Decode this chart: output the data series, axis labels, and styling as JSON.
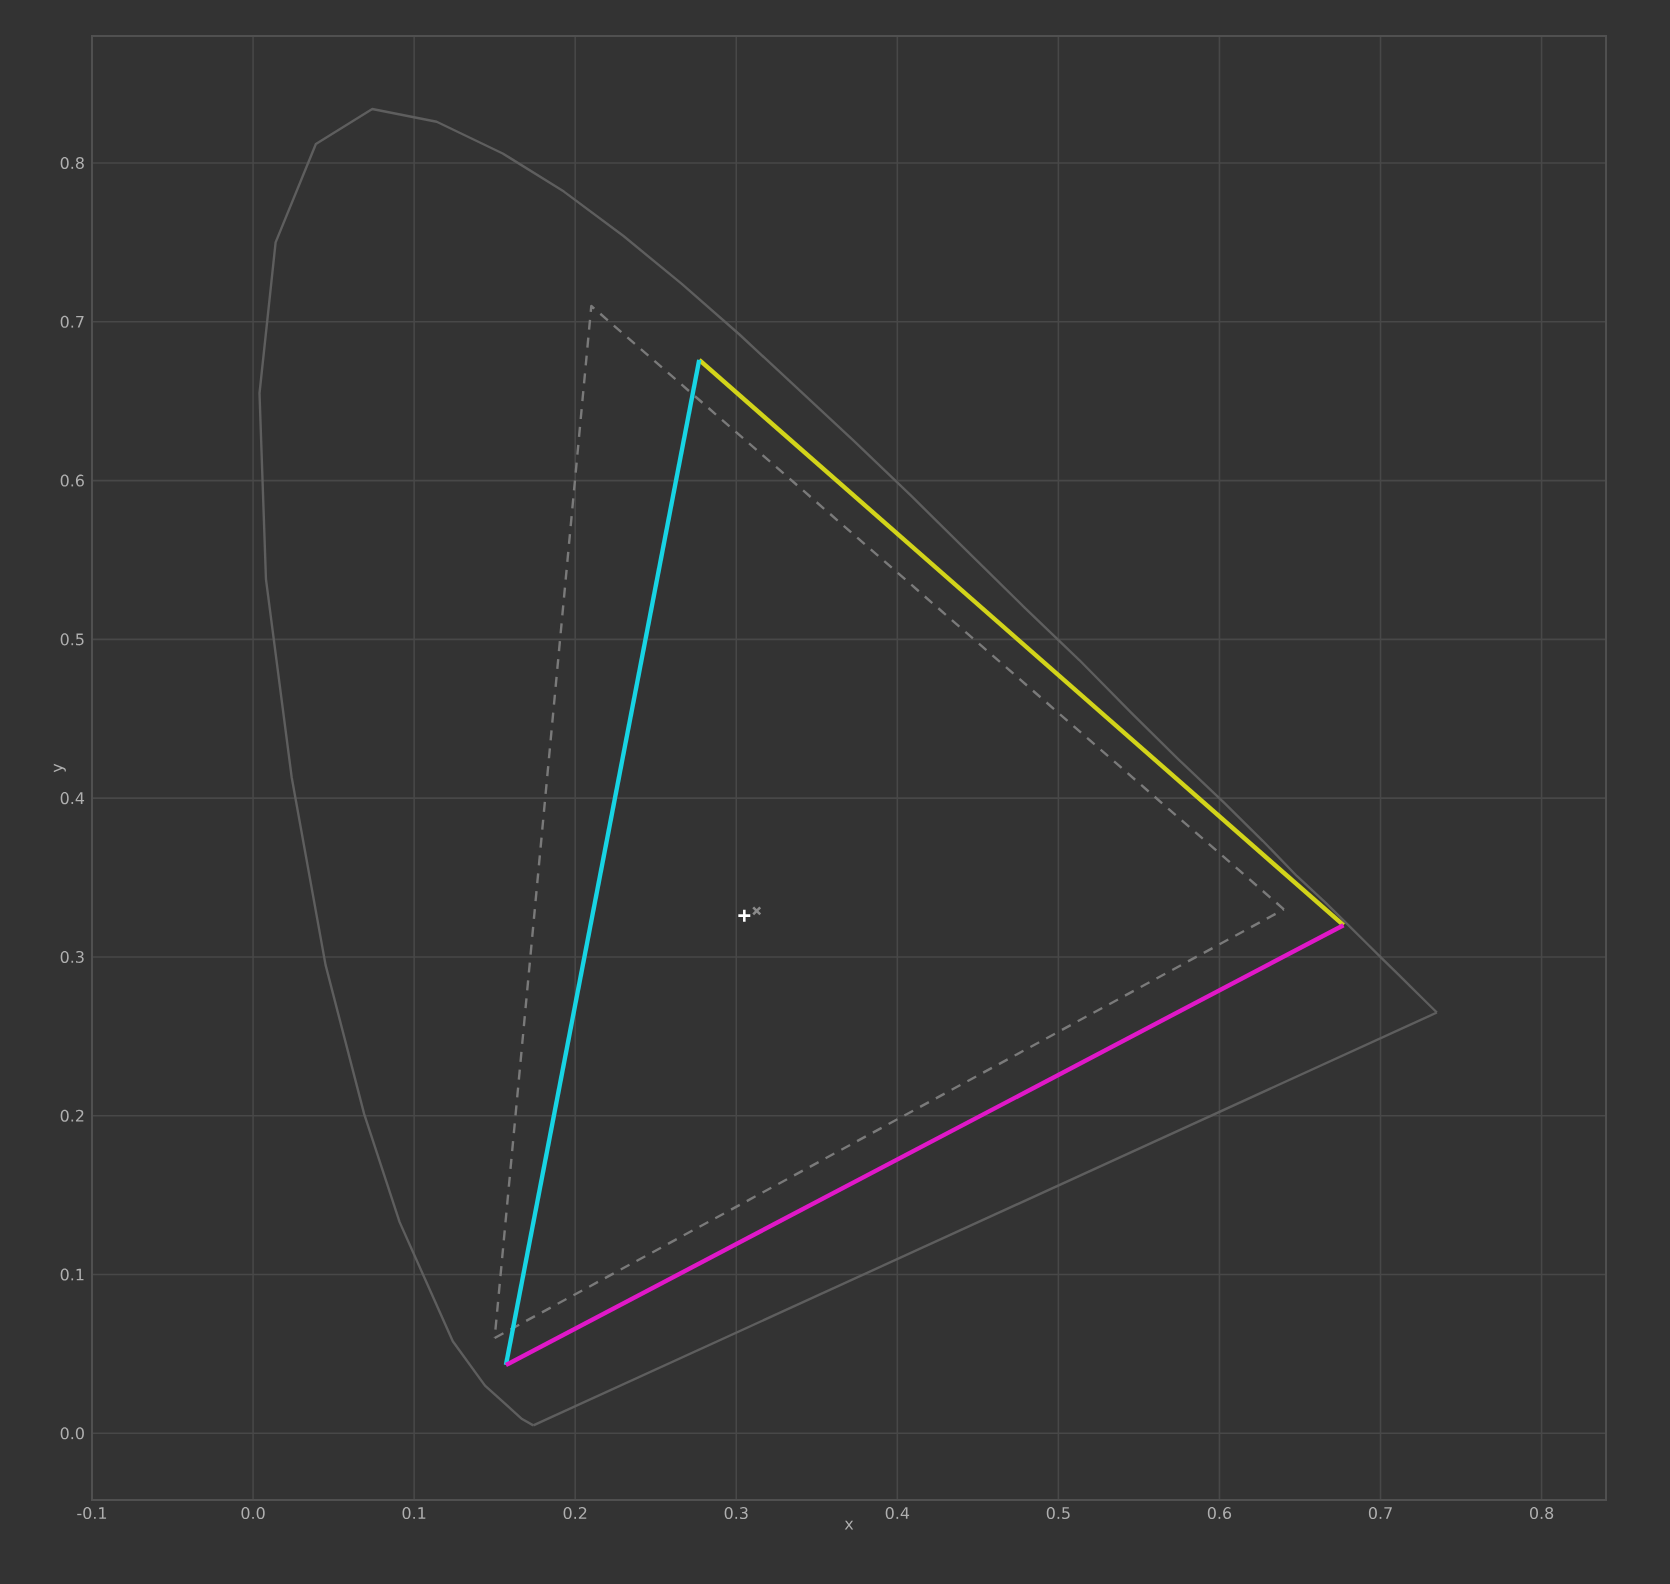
{
  "chart_data": {
    "type": "line",
    "xlabel": "x",
    "ylabel": "y",
    "xlim": [
      -0.1,
      0.84
    ],
    "ylim": [
      -0.042,
      0.88
    ],
    "xticks": [
      {
        "value": -0.1,
        "label": "-0.1"
      },
      {
        "value": 0,
        "label": "0.0"
      },
      {
        "value": 0.1,
        "label": "0.1"
      },
      {
        "value": 0.2,
        "label": "0.2"
      },
      {
        "value": 0.3,
        "label": "0.3"
      },
      {
        "value": 0.4,
        "label": "0.4"
      },
      {
        "value": 0.5,
        "label": "0.5"
      },
      {
        "value": 0.6,
        "label": "0.6"
      },
      {
        "value": 0.7,
        "label": "0.7"
      },
      {
        "value": 0.8,
        "label": "0.8"
      }
    ],
    "yticks": [
      {
        "value": 0,
        "label": "0.0"
      },
      {
        "value": 0.1,
        "label": "0.1"
      },
      {
        "value": 0.2,
        "label": "0.2"
      },
      {
        "value": 0.3,
        "label": "0.3"
      },
      {
        "value": 0.4,
        "label": "0.4"
      },
      {
        "value": 0.5,
        "label": "0.5"
      },
      {
        "value": 0.6,
        "label": "0.6"
      },
      {
        "value": 0.7,
        "label": "0.7"
      },
      {
        "value": 0.8,
        "label": "0.8"
      }
    ],
    "grid": true,
    "marker": "none",
    "line_style": "solid",
    "series": [
      {
        "color": "#5e5e5e",
        "x": [
          0.174,
          0.167,
          0.144,
          0.124,
          0.091,
          0.069,
          0.045,
          0.024,
          0.008,
          0.004,
          0.014,
          0.039,
          0.074,
          0.114,
          0.155,
          0.193,
          0.23,
          0.266,
          0.302,
          0.337,
          0.373,
          0.409,
          0.444,
          0.479,
          0.513,
          0.545,
          0.575,
          0.603,
          0.627,
          0.648,
          0.666,
          0.68,
          0.692,
          0.701,
          0.708,
          0.714,
          0.719,
          0.726,
          0.735
        ],
        "values": [
          0.005,
          0.009,
          0.03,
          0.058,
          0.133,
          0.201,
          0.295,
          0.413,
          0.538,
          0.655,
          0.75,
          0.812,
          0.834,
          0.826,
          0.806,
          0.782,
          0.754,
          0.724,
          0.692,
          0.659,
          0.625,
          0.59,
          0.555,
          0.52,
          0.487,
          0.454,
          0.424,
          0.397,
          0.373,
          0.351,
          0.334,
          0.32,
          0.308,
          0.299,
          0.292,
          0.286,
          0.281,
          0.274,
          0.265
        ]
      },
      {
        "color": "#5e5e5e",
        "x": [
          0.735,
          0.174
        ],
        "values": [
          0.265,
          0.005
        ]
      },
      {
        "color": "#7a7a7a",
        "line_style": "dashed",
        "x": [
          0.64,
          0.21,
          0.15
        ],
        "values": [
          0.33,
          0.71,
          0.06
        ]
      },
      {
        "color": "#7a7a7a",
        "line_style": "dashed",
        "x": [
          0.15,
          0.64
        ],
        "values": [
          0.06,
          0.33
        ]
      },
      {
        "color": "#d2d41a",
        "x": [
          0.677,
          0.277
        ],
        "values": [
          0.32,
          0.676
        ]
      },
      {
        "color": "#18d4e4",
        "x": [
          0.277,
          0.157
        ],
        "values": [
          0.676,
          0.043
        ]
      },
      {
        "color": "#e018c8",
        "x": [
          0.157,
          0.677
        ],
        "values": [
          0.043,
          0.32
        ]
      },
      {
        "type": "scatter",
        "color": "#ffffff",
        "marker": "plus",
        "x": [
          0.305
        ],
        "values": [
          0.326
        ]
      },
      {
        "type": "scatter",
        "color": "#8a8a8a",
        "marker": "cross",
        "x": [
          0.3127
        ],
        "values": [
          0.329
        ]
      }
    ]
  }
}
